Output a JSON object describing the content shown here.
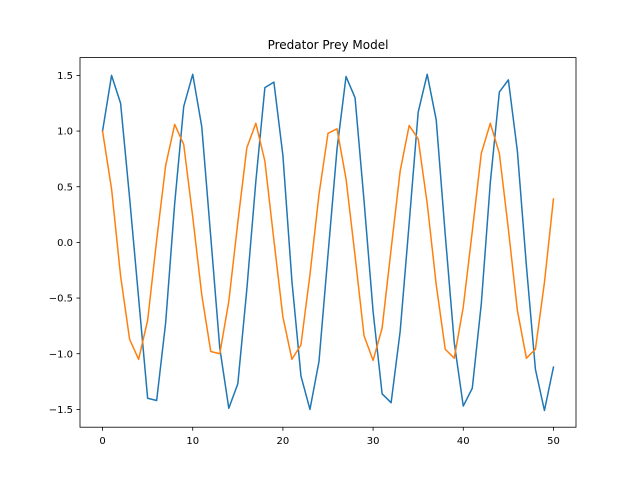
{
  "chart_data": {
    "type": "line",
    "title": "Predator Prey Model",
    "xlabel": "",
    "ylabel": "",
    "xlim": [
      -2.5,
      52.5
    ],
    "ylim": [
      -1.66,
      1.66
    ],
    "grid": false,
    "x_ticks": [
      0,
      10,
      20,
      30,
      40,
      50
    ],
    "x_tick_labels": [
      "0",
      "10",
      "20",
      "30",
      "40",
      "50"
    ],
    "y_ticks": [
      -1.5,
      -1.0,
      -0.5,
      0.0,
      0.5,
      1.0,
      1.5
    ],
    "y_tick_labels": [
      "−1.5",
      "−1.0",
      "−0.5",
      "0.0",
      "0.5",
      "1.0",
      "1.5"
    ],
    "x": [
      0,
      1,
      2,
      3,
      4,
      5,
      6,
      7,
      8,
      9,
      10,
      11,
      12,
      13,
      14,
      15,
      16,
      17,
      18,
      19,
      20,
      21,
      22,
      23,
      24,
      25,
      26,
      27,
      28,
      29,
      30,
      31,
      32,
      33,
      34,
      35,
      36,
      37,
      38,
      39,
      40,
      41,
      42,
      43,
      44,
      45,
      46,
      47,
      48,
      49,
      50
    ],
    "series": [
      {
        "color": "#1f77b4",
        "values": [
          1.0,
          1.5,
          1.25,
          0.4,
          -0.5,
          -1.4,
          -1.42,
          -0.72,
          0.35,
          1.22,
          1.51,
          1.04,
          0.05,
          -0.95,
          -1.49,
          -1.27,
          -0.42,
          0.55,
          1.39,
          1.44,
          0.78,
          -0.35,
          -1.2,
          -1.5,
          -1.07,
          -0.11,
          0.84,
          1.49,
          1.3,
          0.37,
          -0.62,
          -1.36,
          -1.44,
          -0.8,
          0.17,
          1.17,
          1.51,
          1.1,
          0.07,
          -0.9,
          -1.47,
          -1.31,
          -0.55,
          0.54,
          1.35,
          1.46,
          0.82,
          -0.21,
          -1.14,
          -1.51,
          -1.12
        ]
      },
      {
        "color": "#ff7f0e",
        "values": [
          1.0,
          0.48,
          -0.3,
          -0.87,
          -1.05,
          -0.7,
          0.02,
          0.69,
          1.06,
          0.88,
          0.23,
          -0.47,
          -0.98,
          -1.0,
          -0.53,
          0.18,
          0.85,
          1.07,
          0.73,
          0.02,
          -0.67,
          -1.05,
          -0.92,
          -0.29,
          0.43,
          0.98,
          1.02,
          0.57,
          -0.12,
          -0.84,
          -1.06,
          -0.77,
          -0.06,
          0.64,
          1.05,
          0.93,
          0.35,
          -0.38,
          -0.96,
          -1.04,
          -0.58,
          0.1,
          0.8,
          1.07,
          0.8,
          0.12,
          -0.61,
          -1.04,
          -0.96,
          -0.36,
          0.39
        ]
      }
    ]
  }
}
